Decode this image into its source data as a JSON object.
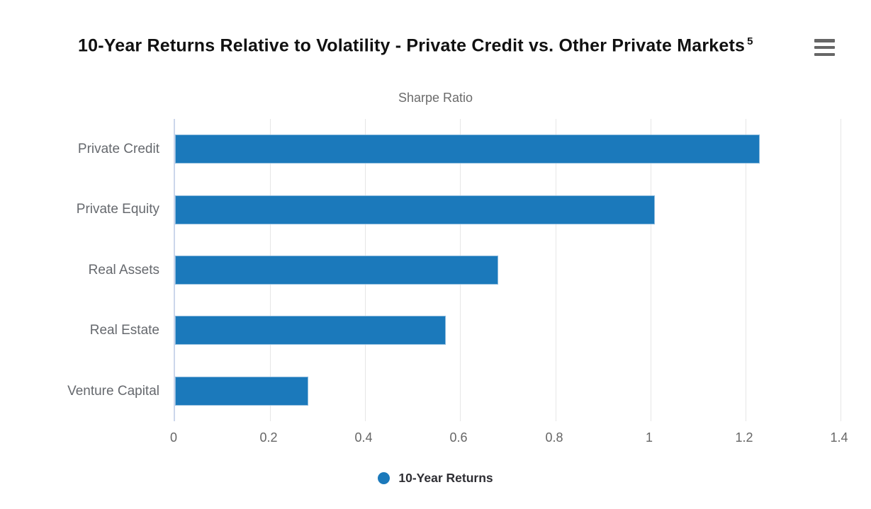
{
  "title": {
    "text": "10-Year Returns Relative to Volatility - Private Credit vs. Other Private Markets",
    "superscript": "5"
  },
  "subtitle": "Sharpe Ratio",
  "menu": {
    "icon": "hamburger-menu-icon"
  },
  "legend": {
    "label": "10-Year Returns",
    "marker_color": "#1b79bb"
  },
  "colors": {
    "bar": "#1b79bb",
    "bar_border": "#8ab9dc",
    "gridline": "#e6e6e6",
    "axis_line": "#ccd6eb",
    "label_gray": "#66696e",
    "title": "#111111",
    "legend_text": "#2e2e33",
    "menu_icon": "#666666"
  },
  "chart_data": {
    "type": "bar",
    "orientation": "horizontal",
    "title": "10-Year Returns Relative to Volatility - Private Credit vs. Other Private Markets 5",
    "value_axis_title": "Sharpe Ratio",
    "categories": [
      "Private Credit",
      "Private Equity",
      "Real Assets",
      "Real Estate",
      "Venture Capital"
    ],
    "series": [
      {
        "name": "10-Year Returns",
        "color": "#1b79bb",
        "values": [
          1.23,
          1.01,
          0.68,
          0.57,
          0.28
        ]
      }
    ],
    "xlim": [
      0,
      1.4
    ],
    "tick_values": [
      0,
      0.2,
      0.4,
      0.6,
      0.8,
      1,
      1.2,
      1.4
    ],
    "tick_labels": [
      "0",
      "0.2",
      "0.4",
      "0.6",
      "0.8",
      "1",
      "1.2",
      "1.4"
    ],
    "grid": true,
    "legend_position": "bottom"
  }
}
